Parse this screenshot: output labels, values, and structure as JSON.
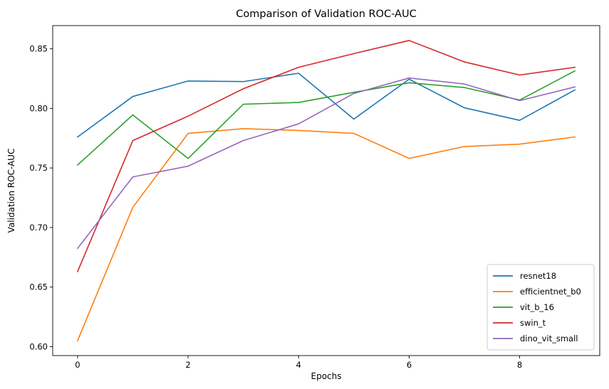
{
  "chart_data": {
    "type": "line",
    "title": "Comparison of Validation ROC-AUC",
    "xlabel": "Epochs",
    "ylabel": "Validation ROC-AUC",
    "xlim": [
      -0.45,
      9.45
    ],
    "ylim": [
      0.5925,
      0.8695
    ],
    "xticks": [
      0,
      2,
      4,
      6,
      8
    ],
    "xtick_labels": [
      "0",
      "2",
      "4",
      "6",
      "8"
    ],
    "yticks": [
      0.6,
      0.65,
      0.7,
      0.75,
      0.8,
      0.85
    ],
    "ytick_labels": [
      "0.60",
      "0.65",
      "0.70",
      "0.75",
      "0.80",
      "0.85"
    ],
    "grid": false,
    "legend_position": "lower right",
    "x": [
      0,
      1,
      2,
      3,
      4,
      5,
      6,
      7,
      8,
      9
    ],
    "series": [
      {
        "name": "resnet18",
        "color": "#1f77b4",
        "values": [
          0.776,
          0.81,
          0.823,
          0.8225,
          0.8295,
          0.791,
          0.8245,
          0.8005,
          0.79,
          0.8155
        ]
      },
      {
        "name": "efficientnet_b0",
        "color": "#ff7f0e",
        "values": [
          0.605,
          0.717,
          0.779,
          0.783,
          0.7815,
          0.779,
          0.758,
          0.768,
          0.77,
          0.776
        ]
      },
      {
        "name": "vit_b_16",
        "color": "#2ca02c",
        "values": [
          0.7525,
          0.7945,
          0.758,
          0.8035,
          0.805,
          0.8135,
          0.8215,
          0.8175,
          0.807,
          0.8315
        ]
      },
      {
        "name": "swin_t",
        "color": "#d62728",
        "values": [
          0.663,
          0.773,
          0.7935,
          0.8165,
          0.8345,
          0.846,
          0.857,
          0.839,
          0.828,
          0.8345
        ]
      },
      {
        "name": "dino_vit_small",
        "color": "#9467bd",
        "values": [
          0.6825,
          0.7425,
          0.7515,
          0.773,
          0.787,
          0.8125,
          0.8255,
          0.8205,
          0.8065,
          0.818
        ]
      }
    ]
  }
}
